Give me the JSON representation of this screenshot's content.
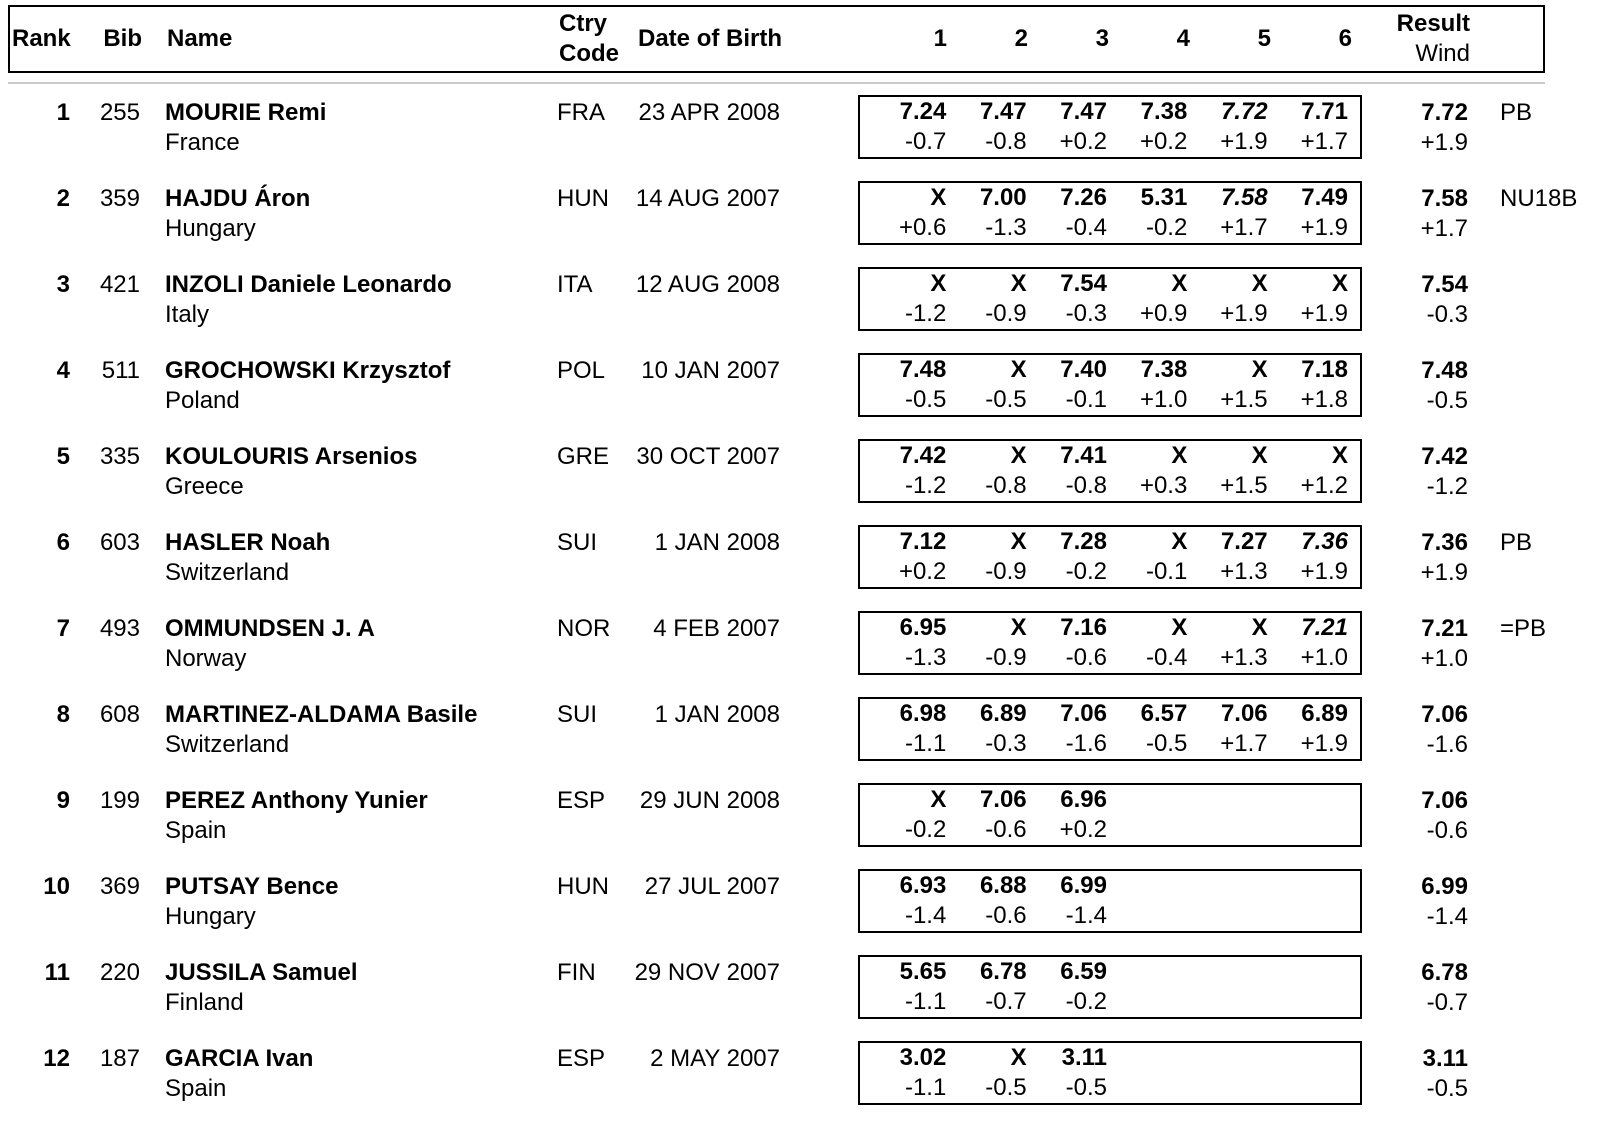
{
  "colors": {
    "text": "#000000",
    "table_border": "#000000",
    "header_rule": "#c9c9c9"
  },
  "header": {
    "rank": "Rank",
    "bib": "Bib",
    "name": "Name",
    "ctry_line1": "Ctry",
    "ctry_line2": "Code",
    "dob": "Date of Birth",
    "attempts": [
      "1",
      "2",
      "3",
      "4",
      "5",
      "6"
    ],
    "result_line1": "Result",
    "result_line2": "Wind"
  },
  "rows": [
    {
      "rank": "1",
      "bib": "255",
      "name": "MOURIE Remi",
      "country": "France",
      "ctry_code": "FRA",
      "dob": "23 APR 2008",
      "attempts": [
        {
          "mark": "7.24",
          "wind": "-0.7"
        },
        {
          "mark": "7.47",
          "wind": "-0.8"
        },
        {
          "mark": "7.47",
          "wind": "+0.2"
        },
        {
          "mark": "7.38",
          "wind": "+0.2"
        },
        {
          "mark": "7.72",
          "wind": "+1.9",
          "best": true
        },
        {
          "mark": "7.71",
          "wind": "+1.7"
        }
      ],
      "result": "7.72",
      "result_wind": "+1.9",
      "note": "PB"
    },
    {
      "rank": "2",
      "bib": "359",
      "name": "HAJDU Áron",
      "country": "Hungary",
      "ctry_code": "HUN",
      "dob": "14 AUG 2007",
      "attempts": [
        {
          "mark": "X",
          "wind": "+0.6"
        },
        {
          "mark": "7.00",
          "wind": "-1.3"
        },
        {
          "mark": "7.26",
          "wind": "-0.4"
        },
        {
          "mark": "5.31",
          "wind": "-0.2"
        },
        {
          "mark": "7.58",
          "wind": "+1.7",
          "best": true
        },
        {
          "mark": "7.49",
          "wind": "+1.9"
        }
      ],
      "result": "7.58",
      "result_wind": "+1.7",
      "note": "NU18B"
    },
    {
      "rank": "3",
      "bib": "421",
      "name": "INZOLI Daniele Leonardo",
      "country": "Italy",
      "ctry_code": "ITA",
      "dob": "12 AUG 2008",
      "attempts": [
        {
          "mark": "X",
          "wind": "-1.2"
        },
        {
          "mark": "X",
          "wind": "-0.9"
        },
        {
          "mark": "7.54",
          "wind": "-0.3"
        },
        {
          "mark": "X",
          "wind": "+0.9"
        },
        {
          "mark": "X",
          "wind": "+1.9"
        },
        {
          "mark": "X",
          "wind": "+1.9"
        }
      ],
      "result": "7.54",
      "result_wind": "-0.3",
      "note": ""
    },
    {
      "rank": "4",
      "bib": "511",
      "name": "GROCHOWSKI Krzysztof",
      "country": "Poland",
      "ctry_code": "POL",
      "dob": "10 JAN 2007",
      "attempts": [
        {
          "mark": "7.48",
          "wind": "-0.5"
        },
        {
          "mark": "X",
          "wind": "-0.5"
        },
        {
          "mark": "7.40",
          "wind": "-0.1"
        },
        {
          "mark": "7.38",
          "wind": "+1.0"
        },
        {
          "mark": "X",
          "wind": "+1.5"
        },
        {
          "mark": "7.18",
          "wind": "+1.8"
        }
      ],
      "result": "7.48",
      "result_wind": "-0.5",
      "note": ""
    },
    {
      "rank": "5",
      "bib": "335",
      "name": "KOULOURIS Arsenios",
      "country": "Greece",
      "ctry_code": "GRE",
      "dob": "30 OCT 2007",
      "attempts": [
        {
          "mark": "7.42",
          "wind": "-1.2"
        },
        {
          "mark": "X",
          "wind": "-0.8"
        },
        {
          "mark": "7.41",
          "wind": "-0.8"
        },
        {
          "mark": "X",
          "wind": "+0.3"
        },
        {
          "mark": "X",
          "wind": "+1.5"
        },
        {
          "mark": "X",
          "wind": "+1.2"
        }
      ],
      "result": "7.42",
      "result_wind": "-1.2",
      "note": ""
    },
    {
      "rank": "6",
      "bib": "603",
      "name": "HASLER Noah",
      "country": "Switzerland",
      "ctry_code": "SUI",
      "dob": "1 JAN 2008",
      "attempts": [
        {
          "mark": "7.12",
          "wind": "+0.2"
        },
        {
          "mark": "X",
          "wind": "-0.9"
        },
        {
          "mark": "7.28",
          "wind": "-0.2"
        },
        {
          "mark": "X",
          "wind": "-0.1"
        },
        {
          "mark": "7.27",
          "wind": "+1.3"
        },
        {
          "mark": "7.36",
          "wind": "+1.9",
          "best": true
        }
      ],
      "result": "7.36",
      "result_wind": "+1.9",
      "note": "PB"
    },
    {
      "rank": "7",
      "bib": "493",
      "name": "OMMUNDSEN J. A",
      "country": "Norway",
      "ctry_code": "NOR",
      "dob": "4 FEB 2007",
      "attempts": [
        {
          "mark": "6.95",
          "wind": "-1.3"
        },
        {
          "mark": "X",
          "wind": "-0.9"
        },
        {
          "mark": "7.16",
          "wind": "-0.6"
        },
        {
          "mark": "X",
          "wind": "-0.4"
        },
        {
          "mark": "X",
          "wind": "+1.3"
        },
        {
          "mark": "7.21",
          "wind": "+1.0",
          "best": true
        }
      ],
      "result": "7.21",
      "result_wind": "+1.0",
      "note": "=PB"
    },
    {
      "rank": "8",
      "bib": "608",
      "name": "MARTINEZ-ALDAMA Basile",
      "country": "Switzerland",
      "ctry_code": "SUI",
      "dob": "1 JAN 2008",
      "attempts": [
        {
          "mark": "6.98",
          "wind": "-1.1"
        },
        {
          "mark": "6.89",
          "wind": "-0.3"
        },
        {
          "mark": "7.06",
          "wind": "-1.6"
        },
        {
          "mark": "6.57",
          "wind": "-0.5"
        },
        {
          "mark": "7.06",
          "wind": "+1.7"
        },
        {
          "mark": "6.89",
          "wind": "+1.9"
        }
      ],
      "result": "7.06",
      "result_wind": "-1.6",
      "note": ""
    },
    {
      "rank": "9",
      "bib": "199",
      "name": "PEREZ Anthony Yunier",
      "country": "Spain",
      "ctry_code": "ESP",
      "dob": "29 JUN 2008",
      "attempts": [
        {
          "mark": "X",
          "wind": "-0.2"
        },
        {
          "mark": "7.06",
          "wind": "-0.6"
        },
        {
          "mark": "6.96",
          "wind": "+0.2"
        }
      ],
      "result": "7.06",
      "result_wind": "-0.6",
      "note": ""
    },
    {
      "rank": "10",
      "bib": "369",
      "name": "PUTSAY Bence",
      "country": "Hungary",
      "ctry_code": "HUN",
      "dob": "27 JUL 2007",
      "attempts": [
        {
          "mark": "6.93",
          "wind": "-1.4"
        },
        {
          "mark": "6.88",
          "wind": "-0.6"
        },
        {
          "mark": "6.99",
          "wind": "-1.4"
        }
      ],
      "result": "6.99",
      "result_wind": "-1.4",
      "note": ""
    },
    {
      "rank": "11",
      "bib": "220",
      "name": "JUSSILA Samuel",
      "country": "Finland",
      "ctry_code": "FIN",
      "dob": "29 NOV 2007",
      "attempts": [
        {
          "mark": "5.65",
          "wind": "-1.1"
        },
        {
          "mark": "6.78",
          "wind": "-0.7"
        },
        {
          "mark": "6.59",
          "wind": "-0.2"
        }
      ],
      "result": "6.78",
      "result_wind": "-0.7",
      "note": ""
    },
    {
      "rank": "12",
      "bib": "187",
      "name": "GARCIA Ivan",
      "country": "Spain",
      "ctry_code": "ESP",
      "dob": "2 MAY 2007",
      "attempts": [
        {
          "mark": "3.02",
          "wind": "-1.1"
        },
        {
          "mark": "X",
          "wind": "-0.5"
        },
        {
          "mark": "3.11",
          "wind": "-0.5"
        }
      ],
      "result": "3.11",
      "result_wind": "-0.5",
      "note": ""
    }
  ]
}
